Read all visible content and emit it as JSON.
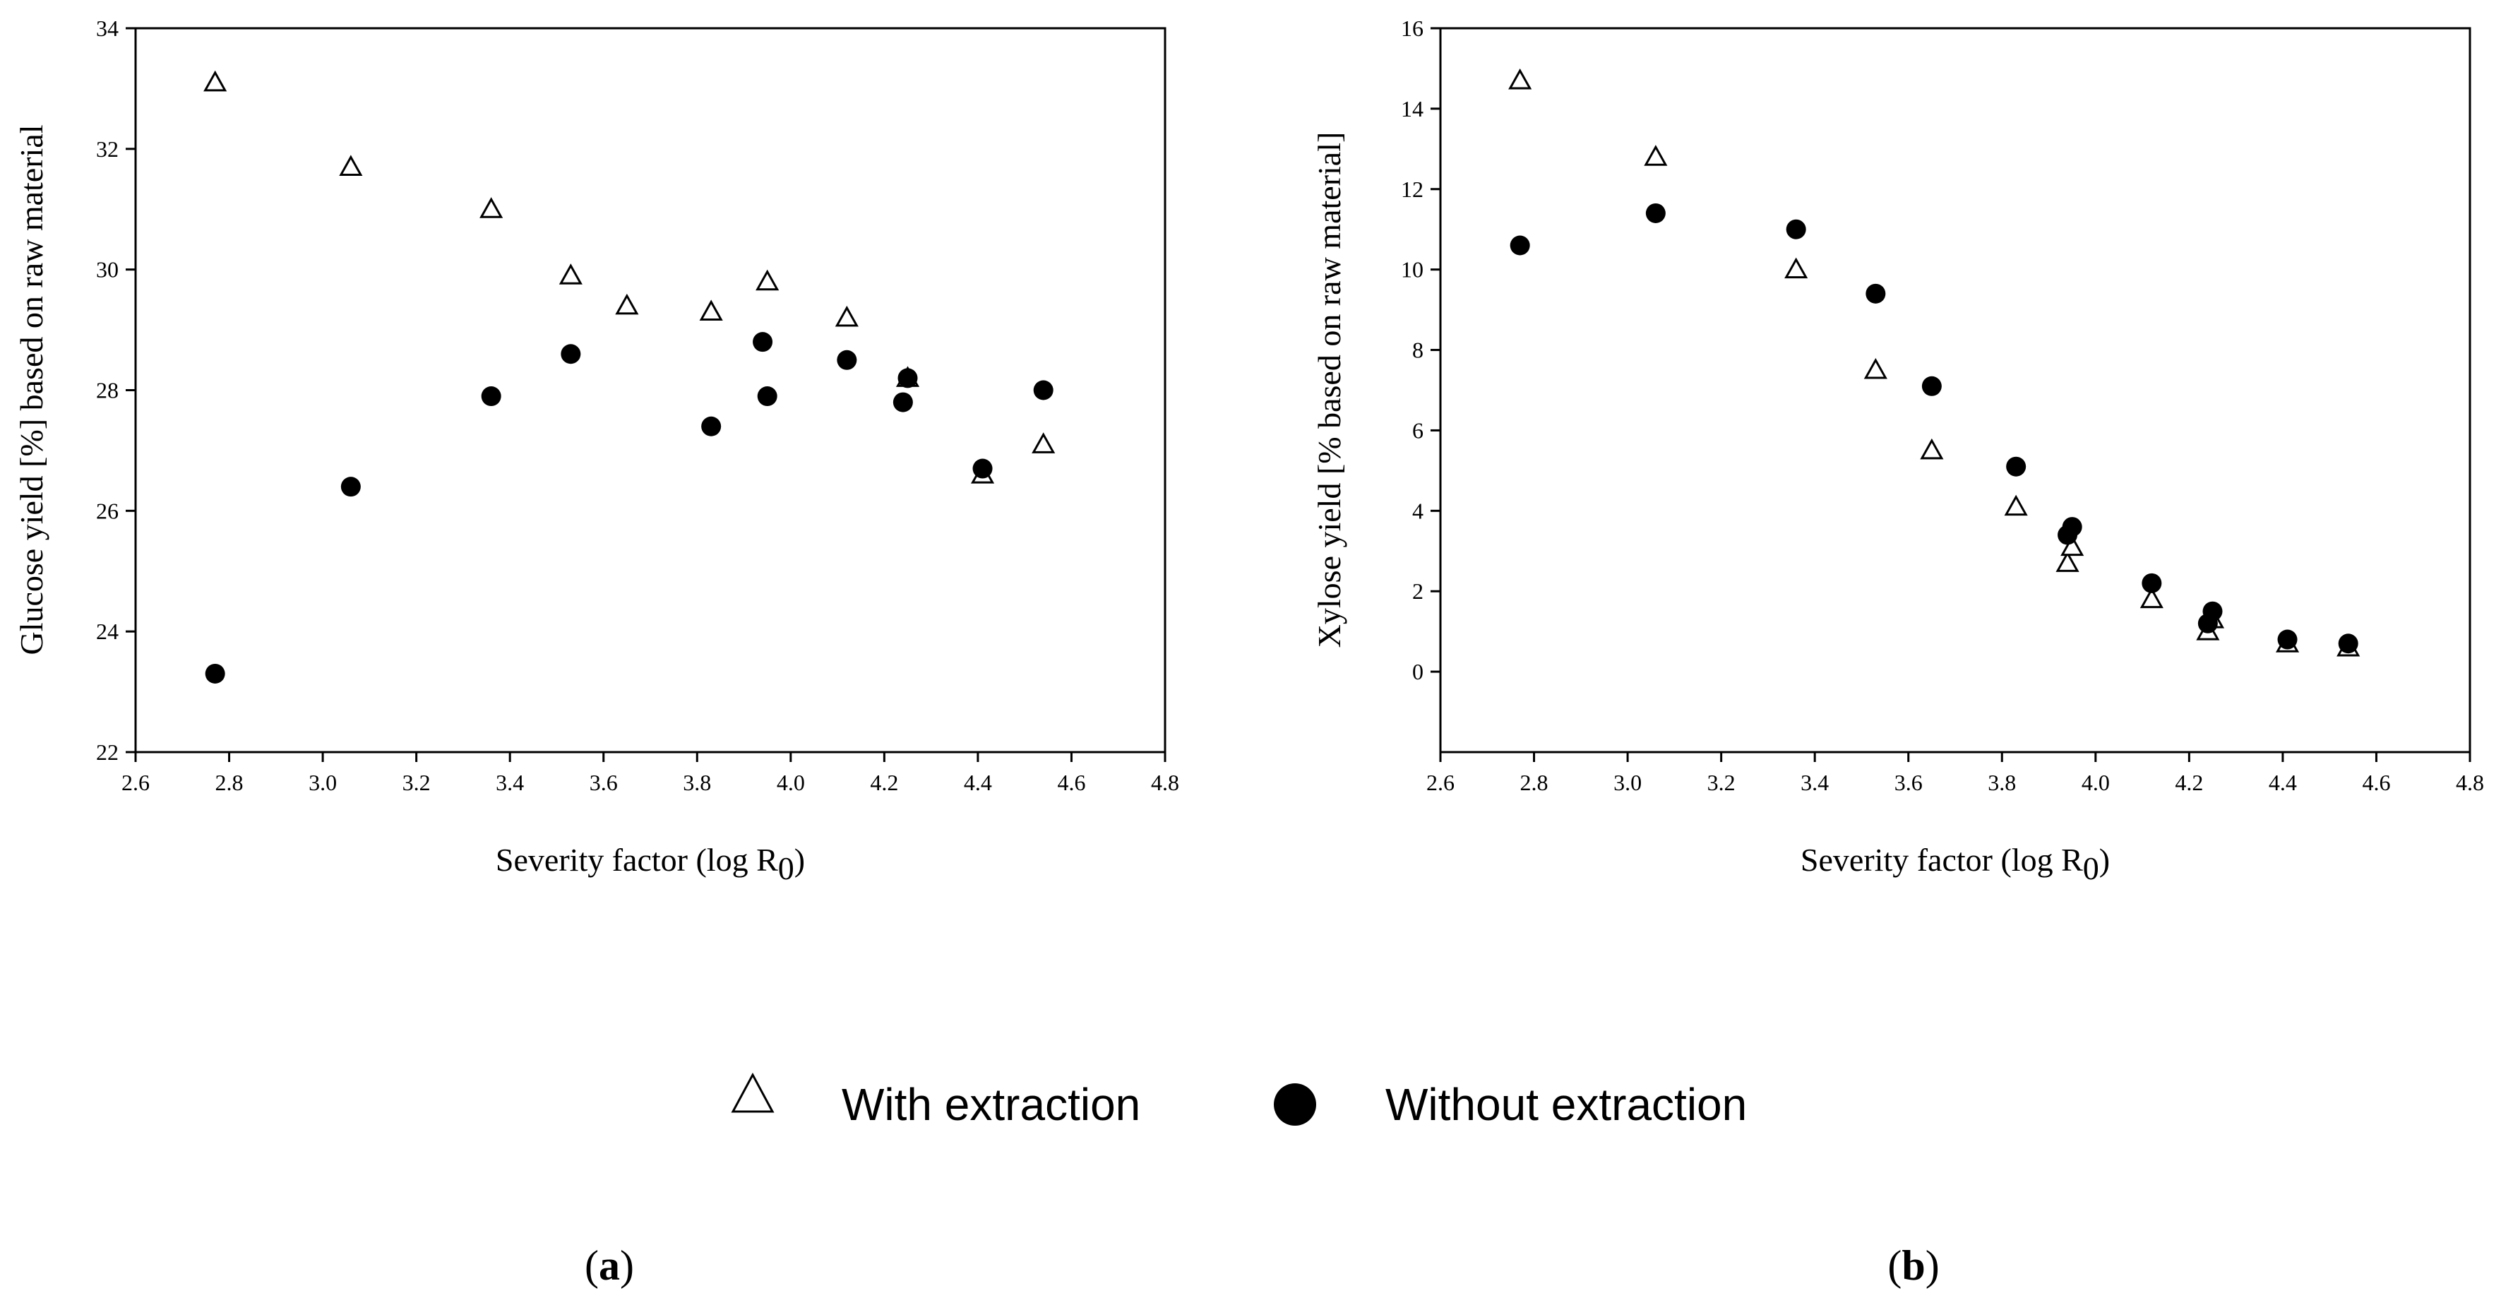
{
  "chart_data": [
    {
      "id": "a",
      "type": "scatter",
      "panel_label": "a",
      "xlabel": "Severity factor (log R",
      "xlabel_sub": "0",
      "xlabel_end": ")",
      "ylabel": "Glucose yield [%] based on raw material",
      "xlim": [
        2.6,
        4.8
      ],
      "ylim": [
        22,
        34
      ],
      "xticks": [
        "2.6",
        "2.8",
        "3.0",
        "3.2",
        "3.4",
        "3.6",
        "3.8",
        "4.0",
        "4.2",
        "4.4",
        "4.6",
        "4.8"
      ],
      "yticks": [
        "22",
        "24",
        "26",
        "28",
        "30",
        "32",
        "34"
      ],
      "series": [
        {
          "name": "With extraction",
          "marker": "open-triangle",
          "x": [
            2.77,
            3.06,
            3.36,
            3.53,
            3.65,
            3.83,
            3.95,
            4.12,
            4.25,
            4.41,
            4.54
          ],
          "y": [
            33.1,
            31.7,
            31.0,
            29.9,
            29.4,
            29.3,
            29.8,
            29.2,
            28.2,
            26.6,
            27.1
          ]
        },
        {
          "name": "Without extraction",
          "marker": "filled-circle",
          "x": [
            2.77,
            3.06,
            3.36,
            3.53,
            3.83,
            3.94,
            3.95,
            4.12,
            4.24,
            4.25,
            4.41,
            4.54
          ],
          "y": [
            23.3,
            26.4,
            27.9,
            28.6,
            27.4,
            28.8,
            27.9,
            28.5,
            27.8,
            28.2,
            26.7,
            28.0
          ]
        }
      ]
    },
    {
      "id": "b",
      "type": "scatter",
      "panel_label": "b",
      "xlabel": "Severity factor (log R",
      "xlabel_sub": "0",
      "xlabel_end": ")",
      "ylabel": "Xylose yield [% based on raw material]",
      "xlim": [
        2.6,
        4.8
      ],
      "ylim": [
        -2,
        16
      ],
      "xticks": [
        "2.6",
        "2.8",
        "3.0",
        "3.2",
        "3.4",
        "3.6",
        "3.8",
        "4.0",
        "4.2",
        "4.4",
        "4.6",
        "4.8"
      ],
      "yticks": [
        "0",
        "2",
        "4",
        "6",
        "8",
        "10",
        "12",
        "14",
        "16"
      ],
      "series": [
        {
          "name": "With extraction",
          "marker": "open-triangle",
          "x": [
            2.77,
            3.06,
            3.36,
            3.53,
            3.65,
            3.83,
            3.94,
            3.95,
            4.12,
            4.24,
            4.25,
            4.41,
            4.54
          ],
          "y": [
            14.7,
            12.8,
            10.0,
            7.5,
            5.5,
            4.1,
            2.7,
            3.1,
            1.8,
            1.0,
            1.3,
            0.7,
            0.6
          ]
        },
        {
          "name": "Without extraction",
          "marker": "filled-circle",
          "x": [
            2.77,
            3.06,
            3.36,
            3.53,
            3.65,
            3.83,
            3.94,
            3.95,
            4.12,
            4.24,
            4.25,
            4.41,
            4.54
          ],
          "y": [
            10.6,
            11.4,
            11.0,
            9.4,
            7.1,
            5.1,
            3.4,
            3.6,
            2.2,
            1.2,
            1.5,
            0.8,
            0.7
          ]
        }
      ]
    }
  ],
  "legend": {
    "placement": "bottom-center",
    "entries": [
      {
        "label": "With extraction",
        "marker": "open-triangle"
      },
      {
        "label": "Without extraction",
        "marker": "filled-circle"
      }
    ]
  }
}
